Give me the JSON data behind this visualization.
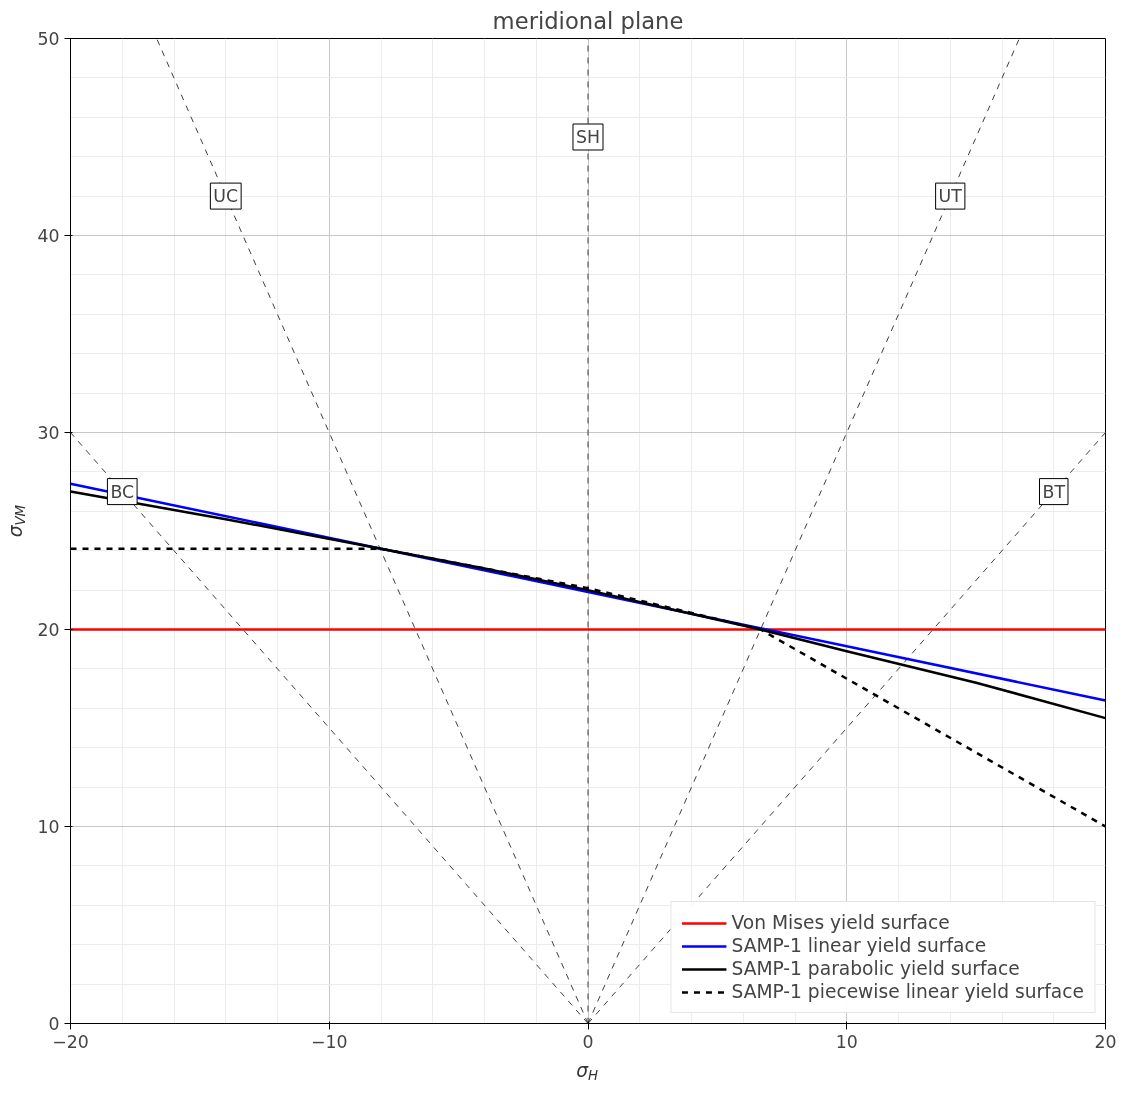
{
  "chart_data": {
    "type": "line",
    "title": "meridional plane",
    "xlabel": "σ$_{H}$",
    "ylabel": "σ$_{VM}$",
    "xlim": [
      -20,
      20
    ],
    "ylim": [
      0,
      50
    ],
    "xticks": [
      -20,
      -10,
      0,
      10,
      20
    ],
    "yticks": [
      0,
      10,
      20,
      30,
      40,
      50
    ],
    "grid": true,
    "legend": "bottom right",
    "series": [
      {
        "color": "#404040",
        "line_style": "dashed",
        "x": [
          0,
          -16.67
        ],
        "values": [
          0,
          50
        ]
      },
      {
        "color": "#404040",
        "line_style": "dashed",
        "x": [
          0,
          16.67
        ],
        "values": [
          0,
          50
        ]
      },
      {
        "color": "#404040",
        "line_style": "dashed",
        "x": [
          0,
          0
        ],
        "values": [
          0,
          50
        ]
      },
      {
        "color": "#404040",
        "line_style": "dashed",
        "x": [
          0,
          -20
        ],
        "values": [
          0,
          30
        ]
      },
      {
        "color": "#404040",
        "line_style": "dashed",
        "x": [
          0,
          20
        ],
        "values": [
          0,
          30
        ]
      },
      {
        "name": "Von Mises yield surface",
        "color": "#ff0000",
        "line_style": "solid",
        "x": [
          -20,
          20
        ],
        "values": [
          20,
          20
        ]
      },
      {
        "name": "SAMP-1 linear yield surface",
        "color": "#0000ff",
        "line_style": "solid",
        "x": [
          -20,
          20
        ],
        "values": [
          27.4,
          16.4
        ]
      },
      {
        "name": "SAMP-1 parabolic yield surface",
        "color": "#000000",
        "line_style": "solid",
        "x": [
          -20,
          -14,
          -8,
          -4,
          0,
          3.3,
          6.67,
          10,
          15,
          20
        ],
        "values": [
          27.0,
          25.6,
          24.1,
          23.1,
          22.0,
          21.0,
          20.0,
          18.9,
          17.3,
          15.5
        ]
      },
      {
        "name": "SAMP-1 piecewise linear yield surface",
        "color": "#000000",
        "line_style": "dashed",
        "x": [
          -20,
          -8,
          0,
          6.67,
          20
        ],
        "values": [
          24.1,
          24.1,
          22.1,
          20.0,
          10.0
        ]
      }
    ],
    "annotations": [
      {
        "text": "UC",
        "x": -14,
        "y": 42
      },
      {
        "text": "SH",
        "x": 0,
        "y": 45
      },
      {
        "text": "UT",
        "x": 14,
        "y": 42
      },
      {
        "text": "BC",
        "x": -18,
        "y": 27
      },
      {
        "text": "BT",
        "x": 18,
        "y": 27
      }
    ]
  }
}
